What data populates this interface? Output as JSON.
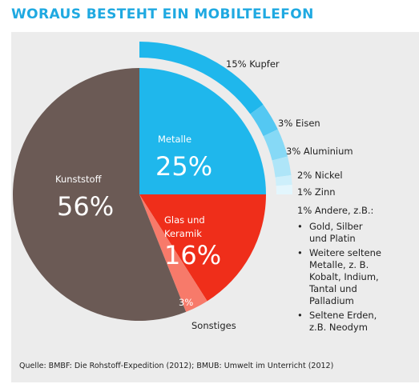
{
  "title": "WORAUS BESTEHT EIN MOBILTELEFON",
  "colors": {
    "title": "#1fa9e1",
    "metalle": "#1fb7ec",
    "glas": "#ef2e1a",
    "kunststoff": "#6b5a55",
    "sonstiges": "#f77a6a",
    "panel": "#ececec"
  },
  "chart_data": {
    "type": "pie",
    "slices": [
      {
        "name": "Metalle",
        "value": 25,
        "label": "25%"
      },
      {
        "name": "Glas und Keramik",
        "value": 16,
        "label": "16%"
      },
      {
        "name": "Sonstiges",
        "value": 3,
        "label": "3%"
      },
      {
        "name": "Kunststoff",
        "value": 56,
        "label": "56%"
      }
    ],
    "metal_breakdown": [
      {
        "name": "Kupfer",
        "value": 15,
        "label": "15% Kupfer"
      },
      {
        "name": "Eisen",
        "value": 3,
        "label": "3% Eisen"
      },
      {
        "name": "Aluminium",
        "value": 3,
        "label": "3% Aluminium"
      },
      {
        "name": "Nickel",
        "value": 2,
        "label": "2% Nickel"
      },
      {
        "name": "Zinn",
        "value": 1,
        "label": "1% Zinn"
      },
      {
        "name": "Andere",
        "value": 1,
        "label": "1% Andere, z.B.:"
      }
    ],
    "andere_examples": [
      [
        "Gold, Silber",
        "und Platin"
      ],
      [
        "Weitere seltene",
        "Metalle, z. B.",
        "Kobalt, Indium,",
        "Tantal und",
        "Palladium"
      ],
      [
        "Seltene Erden,",
        "z.B. Neodym"
      ]
    ],
    "labels": {
      "metalle_name": "Metalle",
      "metalle_pct": "25%",
      "kunststoff_name": "Kunststoff",
      "kunststoff_pct": "56%",
      "glas_name_line1": "Glas und",
      "glas_name_line2": "Keramik",
      "glas_pct": "16%",
      "sonstiges_pct": "3%",
      "sonstiges_name": "Sonstiges"
    }
  },
  "source": "Quelle: BMBF: Die Rohstoff-Expedition (2012); BMUB: Umwelt im Unterricht (2012)"
}
